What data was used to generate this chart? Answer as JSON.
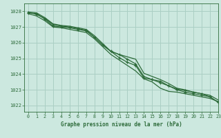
{
  "background_color": "#cce8df",
  "grid_color": "#aacfc4",
  "line_color": "#2d6b3a",
  "title": "Graphe pression niveau de la mer (hPa)",
  "xlim": [
    -0.5,
    23
  ],
  "ylim": [
    1021.6,
    1028.5
  ],
  "yticks": [
    1022,
    1023,
    1024,
    1025,
    1026,
    1027,
    1028
  ],
  "xticks": [
    0,
    1,
    2,
    3,
    4,
    5,
    6,
    7,
    8,
    9,
    10,
    11,
    12,
    13,
    14,
    15,
    16,
    17,
    18,
    19,
    20,
    21,
    22,
    23
  ],
  "series": [
    {
      "x": [
        0,
        1,
        2,
        3,
        4,
        5,
        6,
        7,
        8,
        9,
        10,
        11,
        12,
        13,
        14,
        15,
        16,
        17,
        18,
        19,
        20,
        21,
        22,
        23
      ],
      "y": [
        1027.9,
        1027.85,
        1027.5,
        1027.05,
        1027.0,
        1026.95,
        1026.85,
        1026.75,
        1026.35,
        1025.85,
        1025.45,
        1025.05,
        1024.75,
        1024.55,
        1023.75,
        1023.65,
        1023.55,
        1023.25,
        1023.05,
        1022.95,
        1022.85,
        1022.75,
        1022.55,
        1022.2
      ],
      "marker": "+",
      "lw": 0.9
    },
    {
      "x": [
        0,
        1,
        2,
        3,
        4,
        5,
        6,
        7,
        8,
        9,
        10,
        11,
        12,
        13,
        14,
        15,
        16,
        17,
        18,
        19,
        20,
        21,
        22,
        23
      ],
      "y": [
        1027.85,
        1027.7,
        1027.4,
        1027.0,
        1026.95,
        1026.85,
        1026.75,
        1026.65,
        1026.25,
        1025.75,
        1025.25,
        1024.9,
        1024.55,
        1024.2,
        1023.7,
        1023.5,
        1023.1,
        1022.9,
        1022.85,
        1022.75,
        1022.65,
        1022.55,
        1022.45,
        1022.25
      ],
      "marker": null,
      "lw": 0.9
    },
    {
      "x": [
        0,
        1,
        2,
        3,
        4,
        5,
        6,
        7,
        8,
        9,
        10,
        11,
        12,
        13,
        14,
        15,
        16,
        17,
        18,
        19,
        20,
        21,
        22,
        23
      ],
      "y": [
        1027.95,
        1027.9,
        1027.6,
        1027.2,
        1027.1,
        1027.05,
        1026.95,
        1026.85,
        1026.45,
        1025.95,
        1025.45,
        1025.25,
        1025.1,
        1024.95,
        1024.05,
        1023.85,
        1023.65,
        1023.4,
        1023.1,
        1023.0,
        1022.85,
        1022.75,
        1022.65,
        1022.35
      ],
      "marker": null,
      "lw": 0.9
    },
    {
      "x": [
        0,
        1,
        2,
        3,
        4,
        5,
        6,
        7,
        8,
        9,
        10,
        11,
        12,
        13,
        14,
        15,
        16,
        17,
        18,
        19,
        20,
        21,
        22,
        23
      ],
      "y": [
        1027.95,
        1027.8,
        1027.55,
        1027.15,
        1027.05,
        1027.0,
        1026.9,
        1026.8,
        1026.35,
        1025.85,
        1025.45,
        1025.25,
        1024.95,
        1024.65,
        1023.85,
        1023.65,
        1023.45,
        1023.25,
        1023.0,
        1022.85,
        1022.75,
        1022.65,
        1022.55,
        1022.2
      ],
      "marker": "+",
      "lw": 0.9
    }
  ]
}
